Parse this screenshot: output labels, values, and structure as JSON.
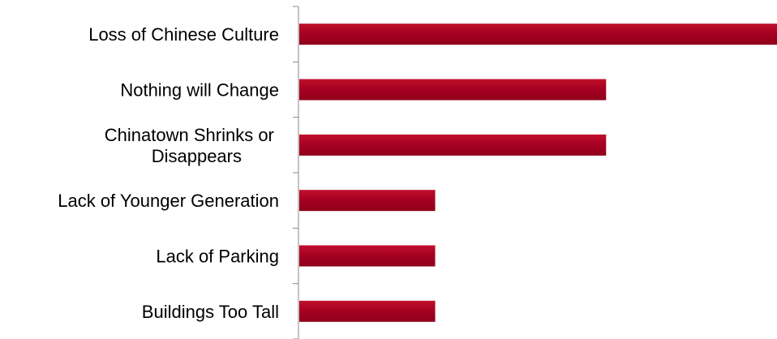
{
  "chart_data": {
    "type": "bar",
    "orientation": "horizontal",
    "categories": [
      [
        "Loss of Chinese Culture"
      ],
      [
        "Nothing will Change"
      ],
      [
        "Chinatown Shrinks or ",
        "Disappears"
      ],
      [
        "Lack of Younger Generation"
      ],
      [
        "Lack of Parking"
      ],
      [
        "Buildings Too Tall"
      ]
    ],
    "values": [
      7,
      4.5,
      4.5,
      2,
      2,
      2
    ],
    "xlim": [
      0,
      7
    ],
    "title": "",
    "xlabel": "",
    "ylabel": "",
    "grid": false,
    "legend": "none",
    "colors": {
      "bar": "#a50021",
      "bar_gradient_top": "#c0102c",
      "bar_gradient_bottom": "#8e001a",
      "axis": "#888888",
      "text": "#000000"
    }
  }
}
